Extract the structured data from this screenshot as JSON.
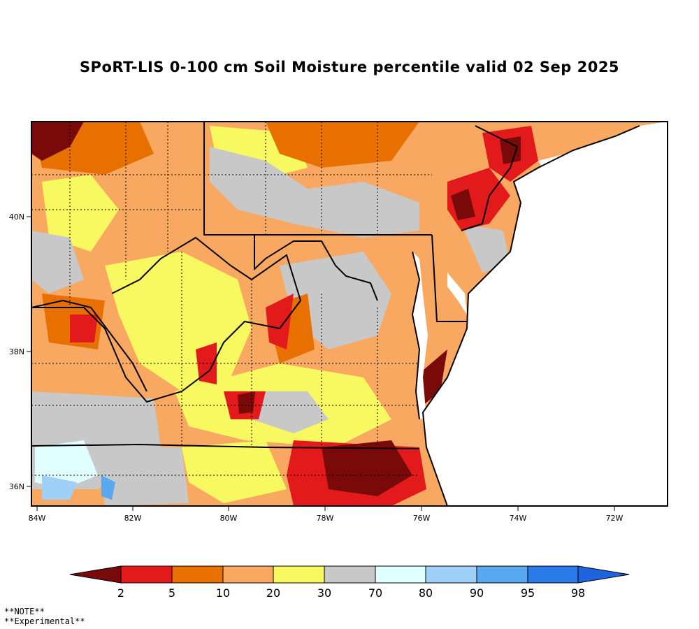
{
  "title": "SPoRT-LIS 0-100 cm Soil Moisture percentile valid 02 Sep 2025",
  "map": {
    "lat_labels": [
      "40N",
      "38N",
      "36N"
    ],
    "lon_labels": [
      "84W",
      "82W",
      "80W",
      "78W",
      "76W",
      "74W",
      "72W"
    ]
  },
  "colorbar": {
    "colors": [
      "#7a0a0a",
      "#e31a1c",
      "#e87000",
      "#f8a860",
      "#f8f860",
      "#c8c8c8",
      "#e0ffff",
      "#a0d0f8",
      "#5aa8f0",
      "#2a7ae8",
      "#1e64e0"
    ],
    "labels": [
      "2",
      "5",
      "10",
      "20",
      "30",
      "70",
      "80",
      "90",
      "95",
      "98"
    ]
  },
  "notes": [
    "**NOTE**",
    "**Experimental**"
  ]
}
